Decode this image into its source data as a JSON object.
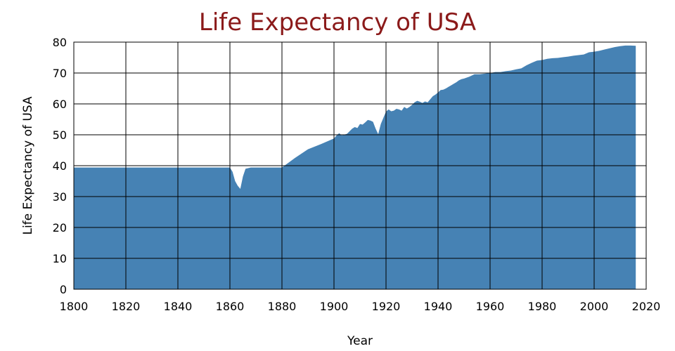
{
  "chart_data": {
    "type": "area",
    "title": "Life Expectancy of USA",
    "xlabel": "Year",
    "ylabel": "Life Expectancy of USA",
    "xlim": [
      1800,
      2020
    ],
    "ylim": [
      0,
      80
    ],
    "x_ticks": [
      1800,
      1820,
      1840,
      1860,
      1880,
      1900,
      1920,
      1940,
      1960,
      1980,
      2000,
      2020
    ],
    "y_ticks": [
      0,
      10,
      20,
      30,
      40,
      50,
      60,
      70,
      80
    ],
    "grid": true,
    "fill_color": "#4682b4",
    "title_color": "#8b1a1a",
    "series": [
      {
        "x": [
          1800,
          1860,
          1861,
          1862,
          1863,
          1864,
          1865,
          1866,
          1868,
          1880,
          1885,
          1890,
          1895,
          1900,
          1901,
          1902,
          1903,
          1905,
          1907,
          1908,
          1909,
          1910,
          1911,
          1912,
          1913,
          1914,
          1915,
          1916,
          1917,
          1918,
          1919,
          1920,
          1921,
          1922,
          1923,
          1924,
          1925,
          1926,
          1927,
          1928,
          1929,
          1930,
          1931,
          1932,
          1933,
          1934,
          1935,
          1936,
          1937,
          1938,
          1939,
          1940,
          1941,
          1942,
          1943,
          1944,
          1945,
          1946,
          1947,
          1948,
          1949,
          1950,
          1952,
          1954,
          1956,
          1958,
          1960,
          1962,
          1964,
          1966,
          1968,
          1970,
          1972,
          1974,
          1976,
          1978,
          1980,
          1982,
          1984,
          1986,
          1988,
          1990,
          1992,
          1994,
          1996,
          1998,
          2000,
          2002,
          2004,
          2006,
          2008,
          2010,
          2012,
          2014,
          2016
        ],
        "y": [
          39.4,
          39.4,
          38.0,
          35.0,
          33.5,
          32.5,
          36.5,
          39.0,
          39.4,
          39.4,
          42.5,
          45.3,
          47.0,
          48.8,
          49.8,
          50.5,
          49.8,
          50.3,
          52.0,
          52.5,
          52.2,
          53.5,
          53.3,
          54.0,
          54.8,
          54.6,
          54.2,
          52.0,
          50.2,
          53.5,
          55.5,
          57.5,
          58.2,
          57.6,
          57.8,
          58.4,
          58.2,
          57.8,
          59.0,
          58.5,
          59.0,
          59.7,
          60.5,
          61.0,
          60.7,
          60.3,
          60.8,
          60.5,
          61.5,
          62.5,
          63.0,
          63.7,
          64.5,
          64.6,
          65.0,
          65.5,
          66.0,
          66.5,
          67.0,
          67.6,
          68.0,
          68.2,
          68.8,
          69.6,
          69.6,
          69.8,
          70.0,
          70.3,
          70.3,
          70.6,
          70.8,
          71.2,
          71.5,
          72.5,
          73.3,
          74.0,
          74.2,
          74.6,
          74.8,
          74.9,
          75.1,
          75.3,
          75.6,
          75.8,
          76.0,
          76.7,
          76.9,
          77.2,
          77.6,
          78.0,
          78.4,
          78.7,
          78.9,
          78.9,
          78.8
        ]
      }
    ]
  }
}
